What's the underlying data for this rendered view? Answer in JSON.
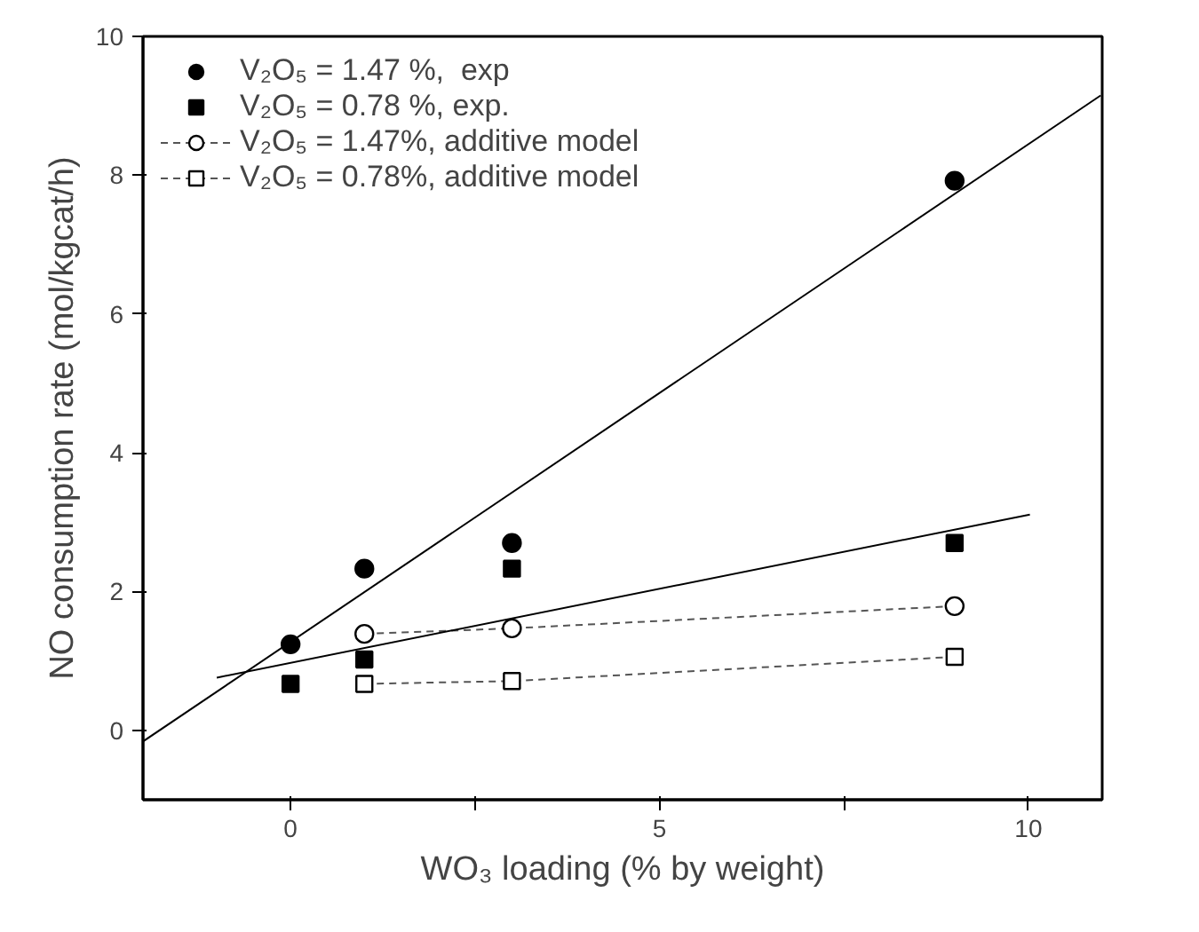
{
  "chart_data": {
    "type": "scatter",
    "xlabel": "WO₃ loading (% by weight)",
    "ylabel": "NO consumption rate (mol/kgcat/h)",
    "xlim": [
      -2,
      11
    ],
    "ylim": [
      -1,
      10
    ],
    "xticks": [
      0,
      {
        "value": 2.5,
        "label": null
      },
      5,
      {
        "value": 7.5,
        "label": null
      },
      10
    ],
    "yticks": [
      0,
      2,
      4,
      6,
      8,
      10
    ],
    "grid": false,
    "legend": "top left",
    "series": [
      {
        "name": "V₂O₅ = 1.47 %,  exp",
        "marker": "circle",
        "color": "#000000",
        "x": [
          0,
          1,
          3,
          9
        ],
        "values": [
          1.24,
          2.33,
          2.7,
          7.92
        ]
      },
      {
        "name": "V₂O₅ = 0.78 %, exp.",
        "marker": "square",
        "color": "#000000",
        "x": [
          0,
          1,
          3,
          9
        ],
        "values": [
          0.67,
          1.02,
          2.33,
          2.7
        ]
      },
      {
        "name": "V₂O₅ = 1.47%, additive model",
        "type": "line",
        "marker": "circle",
        "line_style": "dashed",
        "color": "#000000",
        "x": [
          1,
          3,
          9
        ],
        "values": [
          1.39,
          1.47,
          1.79
        ]
      },
      {
        "name": "V₂O₅ = 0.78%, additive model",
        "type": "line",
        "marker": "square",
        "line_style": "dashed",
        "color": "#000000",
        "x": [
          1,
          3,
          9
        ],
        "values": [
          0.67,
          0.71,
          1.06
        ]
      },
      {
        "type": "line",
        "marker": "none",
        "line_style": "solid",
        "color": "#000000",
        "x": [
          -2,
          10.98
        ],
        "values": [
          -0.16,
          9.15
        ]
      },
      {
        "type": "line",
        "marker": "none",
        "line_style": "solid",
        "color": "#000000",
        "x": [
          -1,
          10.02
        ],
        "values": [
          0.76,
          3.11
        ]
      }
    ]
  }
}
